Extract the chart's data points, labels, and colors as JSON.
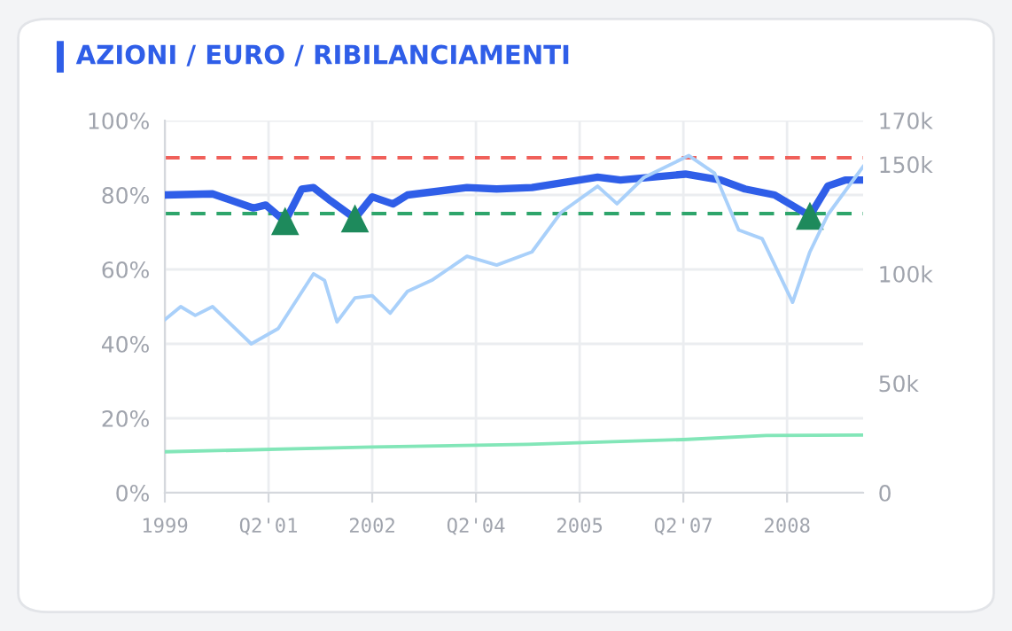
{
  "chart_data": {
    "type": "line",
    "title": "AZIONI / EURO / RIBILANCIAMENTI",
    "xlim": [
      1999,
      2009.1
    ],
    "xticks": [
      1999,
      {
        "value": 2000.5,
        "label": "Q2'01"
      },
      2002,
      {
        "value": 2003.5,
        "label": "Q2'04"
      },
      2005,
      {
        "value": 2006.5,
        "label": "Q2'07"
      },
      2008
    ],
    "ylim": [
      0,
      100
    ],
    "yticks": [
      {
        "value": 0,
        "label": "0%"
      },
      {
        "value": 20,
        "label": "20%"
      },
      {
        "value": 40,
        "label": "40%"
      },
      {
        "value": 60,
        "label": "60%"
      },
      {
        "value": 80,
        "label": "80%"
      },
      {
        "value": 100,
        "label": "100%"
      }
    ],
    "y2lim": [
      0,
      170000
    ],
    "y2ticks": [
      {
        "value": 0,
        "label": "0"
      },
      {
        "value": 50000,
        "label": "50k"
      },
      {
        "value": 100000,
        "label": "100k"
      },
      {
        "value": 150000,
        "label": "150k"
      },
      {
        "value": 170000,
        "label": "170k"
      }
    ],
    "grid": true,
    "ref_lines": [
      {
        "axis": "y",
        "value": 90,
        "color": "#f0605a",
        "line_style": "dashed"
      },
      {
        "axis": "y",
        "value": 75,
        "color": "#2ea56b",
        "line_style": "dashed"
      }
    ],
    "series": [
      {
        "axis": "y2",
        "color": "#a9d0fa",
        "x": [
          1999,
          1999.23,
          1999.44,
          1999.69,
          2000.25,
          2000.64,
          2001.15,
          2001.31,
          2001.49,
          2001.75,
          2002.0,
          2002.26,
          2002.51,
          2002.86,
          2003.37,
          2003.8,
          2004.31,
          2004.73,
          2005.26,
          2005.54,
          2005.93,
          2006.58,
          2006.95,
          2007.3,
          2007.64,
          2008.08,
          2008.33,
          2008.59,
          2009.1
        ],
        "values": [
          79000,
          85000,
          81000,
          85000,
          68000,
          75000,
          100000,
          97000,
          78000,
          89000,
          90000,
          82000,
          92000,
          97000,
          108000,
          104000,
          110000,
          128000,
          140000,
          132000,
          144000,
          154000,
          146000,
          120000,
          116000,
          87000,
          110000,
          127000,
          149000
        ]
      },
      {
        "axis": "y",
        "color": "#82e6b8",
        "x": [
          1999,
          2002,
          2004.25,
          2006.5,
          2007.7,
          2009.1
        ],
        "values": [
          11,
          12.3,
          13,
          14.3,
          15.4,
          15.5
        ]
      },
      {
        "axis": "y",
        "color": "#2f5ee8",
        "x": [
          1999,
          1999.69,
          2000.28,
          2000.46,
          2000.74,
          2000.98,
          2001.15,
          2001.4,
          2001.75,
          2002.0,
          2002.3,
          2002.51,
          2003.37,
          2003.8,
          2004.31,
          2005.26,
          2005.59,
          2006.53,
          2007.04,
          2007.39,
          2007.82,
          2008.33,
          2008.59,
          2008.84,
          2009.1
        ],
        "values": [
          80,
          80.3,
          76.5,
          77.3,
          72.9,
          81.6,
          82,
          78.4,
          73.7,
          79.5,
          77.6,
          80,
          82,
          81.6,
          82,
          84.8,
          84,
          85.6,
          84,
          81.6,
          80,
          74.4,
          82.4,
          84,
          84
        ]
      },
      {
        "type": "scatter",
        "axis": "y",
        "marker": "triangle",
        "color": "#1e8a5c",
        "x": [
          2000.74,
          2001.75,
          2008.33
        ],
        "values": [
          73,
          73.7,
          74.4
        ]
      }
    ]
  }
}
